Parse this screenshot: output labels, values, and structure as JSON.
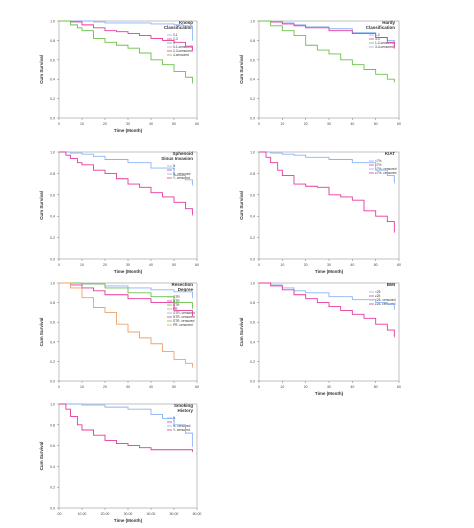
{
  "figure": {
    "charts": [
      {
        "panel": "knosp",
        "type": "line",
        "title": [
          "Knosp",
          "Classification"
        ],
        "xlabel": "Time (Month)",
        "ylabel": "Cum Survival",
        "xticks": [
          0,
          10,
          20,
          30,
          40,
          50,
          60
        ],
        "yticks": [
          0.0,
          0.2,
          0.4,
          0.6,
          0.8,
          1.0
        ],
        "xlim": [
          0,
          60
        ],
        "ylim": [
          0,
          1.0
        ],
        "legend": [
          "0-1",
          "2-3",
          "4",
          "0-1-censored",
          "2-3-censored",
          "4-censored"
        ],
        "series": [
          {
            "name": "0-1",
            "color": "#8ab4f8",
            "x": [
              0,
              8,
              15,
              20,
              30,
              40,
              45,
              50,
              54,
              58
            ],
            "y": [
              1.0,
              1.0,
              0.99,
              0.98,
              0.98,
              0.97,
              0.97,
              0.96,
              0.95,
              0.81
            ]
          },
          {
            "name": "2-3",
            "color": "#e6399b",
            "x": [
              0,
              5,
              10,
              15,
              20,
              25,
              30,
              35,
              40,
              45,
              50,
              55,
              58
            ],
            "y": [
              1.0,
              0.99,
              0.96,
              0.93,
              0.9,
              0.89,
              0.87,
              0.85,
              0.82,
              0.8,
              0.78,
              0.74,
              0.7
            ]
          },
          {
            "name": "4",
            "color": "#6cc04a",
            "x": [
              0,
              5,
              8,
              10,
              15,
              20,
              25,
              30,
              35,
              40,
              45,
              50,
              55,
              58
            ],
            "y": [
              1.0,
              0.96,
              0.93,
              0.9,
              0.82,
              0.78,
              0.75,
              0.72,
              0.67,
              0.6,
              0.55,
              0.48,
              0.42,
              0.37
            ]
          }
        ]
      },
      {
        "panel": "hardy",
        "type": "line",
        "title": [
          "Hardy",
          "Classification"
        ],
        "xlabel": "",
        "ylabel": "Cum Survival",
        "xticks": [
          0,
          10,
          20,
          30,
          40,
          50,
          60
        ],
        "yticks": [
          0.0,
          0.2,
          0.4,
          0.6,
          0.8,
          1.0
        ],
        "xlim": [
          0,
          60
        ],
        "ylim": [
          0,
          1.0
        ],
        "legend": [
          "1-2",
          "3-4",
          "1-2-censored",
          "3-4-censored"
        ],
        "series": [
          {
            "name": "1-2",
            "color": "#8ab4f8",
            "x": [
              0,
              5,
              10,
              15,
              20,
              30,
              40,
              50,
              55,
              58
            ],
            "y": [
              1.0,
              0.99,
              0.98,
              0.96,
              0.94,
              0.92,
              0.88,
              0.83,
              0.8,
              0.77
            ]
          },
          {
            "name": "3-4",
            "color": "#e6399b",
            "x": [
              0,
              5,
              10,
              15,
              20,
              30,
              40,
              50,
              55,
              58
            ],
            "y": [
              1.0,
              0.99,
              0.97,
              0.95,
              0.93,
              0.9,
              0.87,
              0.83,
              0.78,
              0.73
            ]
          },
          {
            "name": "green",
            "color": "#6cc04a",
            "x": [
              0,
              5,
              10,
              15,
              20,
              25,
              30,
              35,
              40,
              45,
              50,
              55,
              58
            ],
            "y": [
              1.0,
              0.95,
              0.9,
              0.85,
              0.75,
              0.7,
              0.66,
              0.6,
              0.55,
              0.5,
              0.45,
              0.4,
              0.38
            ]
          }
        ]
      },
      {
        "panel": "sphenoid",
        "type": "line",
        "title": [
          "Sphenoid",
          "Sinus Invasion"
        ],
        "xlabel": "Time (Month)",
        "ylabel": "Cum Survival",
        "xticks": [
          0,
          10,
          20,
          30,
          40,
          50,
          60
        ],
        "yticks": [
          0.0,
          0.2,
          0.4,
          0.6,
          0.8,
          1.0
        ],
        "xlim": [
          0,
          60
        ],
        "ylim": [
          0,
          1.0
        ],
        "legend": [
          "N",
          "Y",
          "N- censored",
          "Y- censored"
        ],
        "series": [
          {
            "name": "N",
            "color": "#8ab4f8",
            "x": [
              0,
              5,
              10,
              15,
              20,
              30,
              40,
              50,
              55,
              58
            ],
            "y": [
              1.0,
              0.99,
              0.98,
              0.96,
              0.93,
              0.9,
              0.85,
              0.78,
              0.74,
              0.7
            ]
          },
          {
            "name": "Y",
            "color": "#e6399b",
            "x": [
              0,
              3,
              5,
              8,
              10,
              15,
              20,
              25,
              30,
              35,
              40,
              45,
              50,
              55,
              58
            ],
            "y": [
              1.0,
              0.97,
              0.94,
              0.9,
              0.88,
              0.83,
              0.8,
              0.75,
              0.7,
              0.67,
              0.62,
              0.58,
              0.53,
              0.47,
              0.42
            ]
          }
        ]
      },
      {
        "panel": "kiat",
        "type": "line",
        "title": [
          "KIAT"
        ],
        "xlabel": "Time (Month)",
        "ylabel": "Cum Survival",
        "xticks": [
          0,
          10,
          20,
          30,
          40,
          50,
          60
        ],
        "yticks": [
          0.0,
          0.2,
          0.4,
          0.6,
          0.8,
          1.0
        ],
        "xlim": [
          0,
          60
        ],
        "ylim": [
          0,
          1.0
        ],
        "legend": [
          "<7%",
          "≥7%",
          "<7%- censored",
          "≥7%- censored"
        ],
        "series": [
          {
            "name": "<7%",
            "color": "#8ab4f8",
            "x": [
              0,
              5,
              10,
              15,
              20,
              30,
              40,
              50,
              55,
              58
            ],
            "y": [
              1.0,
              0.99,
              0.98,
              0.97,
              0.95,
              0.93,
              0.9,
              0.83,
              0.78,
              0.72
            ]
          },
          {
            "name": "≥7%",
            "color": "#e6399b",
            "x": [
              0,
              3,
              5,
              8,
              10,
              15,
              20,
              25,
              28,
              30,
              35,
              40,
              45,
              50,
              55,
              58
            ],
            "y": [
              1.0,
              0.95,
              0.9,
              0.83,
              0.78,
              0.7,
              0.68,
              0.67,
              0.67,
              0.6,
              0.58,
              0.55,
              0.45,
              0.4,
              0.35,
              0.26
            ]
          }
        ]
      },
      {
        "panel": "resection",
        "type": "line",
        "title": [
          "Resection",
          "Degree"
        ],
        "xlabel": "",
        "ylabel": "Cum Survival",
        "xticks": [
          0,
          10,
          20,
          30,
          40,
          50,
          60
        ],
        "yticks": [
          0.0,
          0.2,
          0.4,
          0.6,
          0.8,
          1.0
        ],
        "xlim": [
          0,
          60
        ],
        "ylim": [
          0,
          1.0
        ],
        "legend": [
          "GTR",
          "NTR",
          "STR",
          "PR",
          "GTR- censored",
          "NTR- censored",
          "STR- censored",
          "PR- censored"
        ],
        "series": [
          {
            "name": "GTR",
            "color": "#8ab4f8",
            "x": [
              0,
              10,
              20,
              30,
              40,
              50,
              58
            ],
            "y": [
              1.0,
              0.99,
              0.97,
              0.95,
              0.93,
              0.91,
              0.86
            ]
          },
          {
            "name": "NTR",
            "color": "#e6399b",
            "x": [
              0,
              5,
              10,
              15,
              20,
              30,
              40,
              50,
              58
            ],
            "y": [
              1.0,
              0.98,
              0.95,
              0.92,
              0.88,
              0.84,
              0.8,
              0.72,
              0.67
            ]
          },
          {
            "name": "STR",
            "color": "#6cc04a",
            "x": [
              0,
              10,
              20,
              30,
              40,
              50,
              58
            ],
            "y": [
              1.0,
              0.99,
              0.95,
              0.9,
              0.86,
              0.8,
              0.75
            ]
          },
          {
            "name": "PR",
            "color": "#f0a06a",
            "x": [
              0,
              5,
              10,
              15,
              20,
              25,
              30,
              35,
              40,
              45,
              50,
              55,
              58
            ],
            "y": [
              1.0,
              0.95,
              0.85,
              0.75,
              0.7,
              0.58,
              0.5,
              0.44,
              0.38,
              0.3,
              0.22,
              0.18,
              0.15
            ]
          }
        ]
      },
      {
        "panel": "bmi",
        "type": "line",
        "title": [
          "BMI"
        ],
        "xlabel": "Time (Month)",
        "ylabel": "Cum Survival",
        "xticks": [
          0,
          10,
          20,
          30,
          40,
          50,
          60
        ],
        "yticks": [
          0.0,
          0.2,
          0.4,
          0.6,
          0.8,
          1.0
        ],
        "xlim": [
          0,
          60
        ],
        "ylim": [
          0,
          1.0
        ],
        "legend": [
          "<25",
          "≥25",
          "<25- censored",
          "≥25- censored"
        ],
        "series": [
          {
            "name": "<25",
            "color": "#8ab4f8",
            "x": [
              0,
              5,
              10,
              15,
              20,
              30,
              40,
              50,
              55,
              58
            ],
            "y": [
              1.0,
              0.98,
              0.95,
              0.92,
              0.9,
              0.86,
              0.83,
              0.8,
              0.78,
              0.74
            ]
          },
          {
            "name": "≥25",
            "color": "#e6399b",
            "x": [
              0,
              5,
              10,
              15,
              20,
              25,
              30,
              35,
              40,
              45,
              50,
              55,
              58
            ],
            "y": [
              1.0,
              0.97,
              0.93,
              0.88,
              0.84,
              0.8,
              0.76,
              0.72,
              0.68,
              0.64,
              0.58,
              0.52,
              0.46
            ]
          }
        ]
      },
      {
        "panel": "smoking",
        "type": "line",
        "title": [
          "Smoking",
          "History"
        ],
        "xlabel": "Time (Month)",
        "ylabel": "Cum Survival",
        "xticks": [
          ".00",
          "10.00",
          "20.00",
          "30.00",
          "40.00",
          "50.00",
          "60.00"
        ],
        "yticks": [
          0.0,
          0.2,
          0.4,
          0.6,
          0.8,
          1.0
        ],
        "xlim": [
          0,
          60
        ],
        "ylim": [
          0,
          1.0
        ],
        "legend": [
          "N",
          "Y",
          "N- censored",
          "Y- censored"
        ],
        "series": [
          {
            "name": "N",
            "color": "#8ab4f8",
            "x": [
              0,
              10,
              20,
              30,
              40,
              45,
              50,
              55,
              58
            ],
            "y": [
              1.0,
              0.99,
              0.97,
              0.95,
              0.9,
              0.86,
              0.8,
              0.72,
              0.6
            ]
          },
          {
            "name": "Y",
            "color": "#e6399b",
            "x": [
              0,
              3,
              5,
              8,
              10,
              15,
              20,
              25,
              30,
              35,
              40,
              50,
              58
            ],
            "y": [
              1.0,
              0.95,
              0.88,
              0.8,
              0.75,
              0.7,
              0.65,
              0.62,
              0.6,
              0.58,
              0.56,
              0.56,
              0.55
            ]
          }
        ]
      }
    ]
  }
}
